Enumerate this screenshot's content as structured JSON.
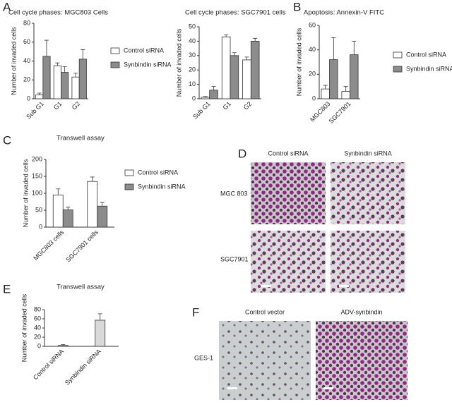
{
  "panels": [
    "A",
    "B",
    "C",
    "D",
    "E",
    "F"
  ],
  "chart_data": [
    {
      "type": "bar",
      "title": "Cell cycle phases: MGC803 Cells",
      "y_label": "Number of invaded cells",
      "categories": [
        "Sub G1",
        "G1",
        "G2"
      ],
      "ylim": [
        0,
        80
      ],
      "yticks": [
        0,
        20,
        40,
        60,
        80
      ],
      "series": [
        {
          "name": "Control siRNA",
          "color": "#ffffff",
          "values": [
            4,
            35,
            23
          ],
          "errors": [
            2,
            3,
            4
          ]
        },
        {
          "name": "Synbindin siRNA",
          "color": "#8c8c8c",
          "values": [
            45,
            28,
            42
          ],
          "errors": [
            17,
            6,
            10
          ]
        }
      ]
    },
    {
      "type": "bar",
      "title": "Cell cycle phases: SGC7901  cells",
      "y_label": "Number of invaded cells",
      "categories": [
        "Sub G1",
        "G1",
        "G2"
      ],
      "ylim": [
        0,
        50
      ],
      "yticks": [
        0,
        10,
        20,
        30,
        40,
        50
      ],
      "series": [
        {
          "color": "#ffffff",
          "values": [
            1,
            43,
            27
          ],
          "errors": [
            0.5,
            1.5,
            2
          ]
        },
        {
          "color": "#8c8c8c",
          "values": [
            6,
            30,
            40
          ],
          "errors": [
            2.5,
            2,
            2
          ]
        }
      ]
    },
    {
      "type": "bar",
      "title": "Apoptosis: Annexin-V FITC",
      "y_label": "Number of invaded cells",
      "categories": [
        "MGC803",
        "SGC7901"
      ],
      "ylim": [
        0,
        60
      ],
      "yticks": [
        0,
        20,
        40,
        60
      ],
      "series": [
        {
          "name": "Control siRNA",
          "color": "#ffffff",
          "values": [
            8,
            6
          ],
          "errors": [
            3,
            4
          ]
        },
        {
          "name": "Synbindin siRNA",
          "color": "#8c8c8c",
          "values": [
            32,
            36
          ],
          "errors": [
            18,
            11
          ]
        }
      ]
    },
    {
      "type": "bar",
      "title": "Transwell assay",
      "y_label": "Number of invaded cells",
      "categories": [
        "MGC803 cells",
        "SGC7901 cells"
      ],
      "ylim": [
        0,
        200
      ],
      "yticks": [
        0,
        50,
        100,
        150,
        200
      ],
      "series": [
        {
          "name": "Control siRNA",
          "color": "#ffffff",
          "values": [
            95,
            135
          ],
          "errors": [
            18,
            13
          ]
        },
        {
          "name": "Synbindin siRNA",
          "color": "#8c8c8c",
          "values": [
            51,
            62
          ],
          "errors": [
            8,
            11
          ]
        }
      ]
    },
    {
      "type": "bar",
      "title": "Transwell assay",
      "y_label": "Number of invaded cells",
      "categories": [
        "Control siRNA",
        "Synbindin siRNA"
      ],
      "ylim": [
        0,
        80
      ],
      "yticks": [
        0,
        20,
        40,
        60,
        80
      ],
      "series": [
        {
          "color": "#d9d9d9",
          "values": [
            2,
            57
          ],
          "errors": [
            2,
            14
          ]
        }
      ]
    }
  ],
  "images": {
    "D": {
      "columns": [
        "Control  siRNA",
        "Synbindin siRNA"
      ],
      "rows": [
        "MGC 803",
        "SGC7901"
      ]
    },
    "F": {
      "columns": [
        "Control vector",
        "ADV-synbindin"
      ],
      "rows": [
        "GES-1"
      ]
    }
  }
}
